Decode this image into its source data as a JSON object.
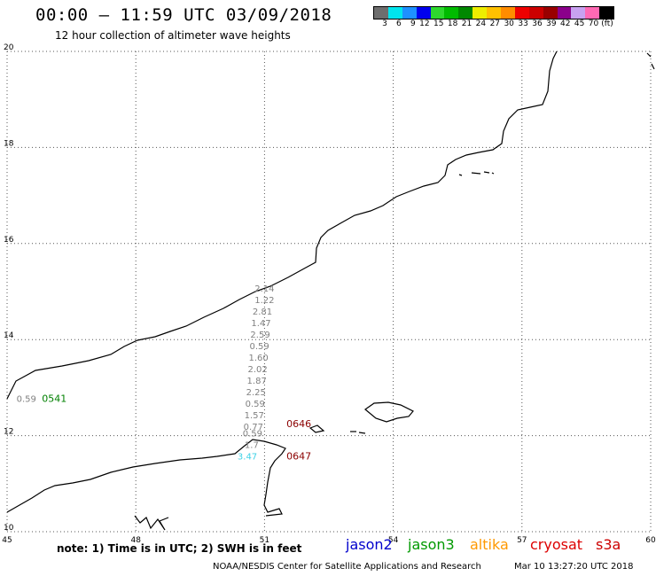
{
  "header": {
    "title": "00:00 – 11:59 UTC 03/09/2018",
    "subtitle": "12 hour collection of altimeter wave heights"
  },
  "colorbar": {
    "colors": [
      "#6e6e6e",
      "#00e5ee",
      "#1e90ff",
      "#0000ee",
      "#2ed82e",
      "#00bb00",
      "#008800",
      "#eeee00",
      "#ffc100",
      "#ff8c00",
      "#ee0000",
      "#cc0000",
      "#990000",
      "#8b008b",
      "#c8a2f0",
      "#ff69b4",
      "#000000"
    ],
    "ticks": [
      "3",
      "6",
      "9",
      "12",
      "15",
      "18",
      "21",
      "24",
      "27",
      "30",
      "33",
      "36",
      "39",
      "42",
      "45",
      "70"
    ],
    "unit": "(ft)"
  },
  "map": {
    "lon_range": [
      45,
      60
    ],
    "lat_range": [
      10,
      20
    ],
    "lon_labels": [
      "45",
      "48",
      "51",
      "54",
      "57",
      "60"
    ],
    "lat_labels": [
      "10",
      "12",
      "14",
      "16",
      "18",
      "20"
    ],
    "swh_track": [
      {
        "lon": 51.0,
        "lat": 15.0,
        "value": "2.14",
        "color": "#808080"
      },
      {
        "lon": 51.0,
        "lat": 14.76,
        "value": "1.22",
        "color": "#808080"
      },
      {
        "lon": 50.95,
        "lat": 14.52,
        "value": "2.81",
        "color": "#808080"
      },
      {
        "lon": 50.92,
        "lat": 14.28,
        "value": "1.47",
        "color": "#808080"
      },
      {
        "lon": 50.9,
        "lat": 14.04,
        "value": "2.59",
        "color": "#808080"
      },
      {
        "lon": 50.88,
        "lat": 13.8,
        "value": "0.59",
        "color": "#808080"
      },
      {
        "lon": 50.86,
        "lat": 13.56,
        "value": "1.60",
        "color": "#808080"
      },
      {
        "lon": 50.84,
        "lat": 13.32,
        "value": "2.02",
        "color": "#808080"
      },
      {
        "lon": 50.82,
        "lat": 13.08,
        "value": "1.87",
        "color": "#808080"
      },
      {
        "lon": 50.8,
        "lat": 12.84,
        "value": "2.25",
        "color": "#808080"
      },
      {
        "lon": 50.78,
        "lat": 12.6,
        "value": "0.59",
        "color": "#808080"
      },
      {
        "lon": 50.76,
        "lat": 12.36,
        "value": "1.57",
        "color": "#808080"
      },
      {
        "lon": 50.74,
        "lat": 12.12,
        "value": "0.77",
        "color": "#808080"
      },
      {
        "lon": 50.72,
        "lat": 11.98,
        "value": "0.59",
        "color": "#808080"
      },
      {
        "lon": 50.7,
        "lat": 11.74,
        "value": "1.7",
        "color": "#808080"
      },
      {
        "lon": 50.6,
        "lat": 11.5,
        "value": "3.47",
        "color": "#3fd2e6"
      },
      {
        "lon": 45.45,
        "lat": 12.7,
        "value": "0.59",
        "color": "#808080"
      }
    ],
    "time_labels": [
      {
        "lon": 46.1,
        "lat": 12.7,
        "text": "0541",
        "color": "#008000"
      },
      {
        "lon": 51.8,
        "lat": 12.18,
        "text": "0646",
        "color": "#8b0000"
      },
      {
        "lon": 51.8,
        "lat": 11.5,
        "text": "0647",
        "color": "#8b0000"
      }
    ]
  },
  "footer": {
    "note": "note:  1) Time is in UTC;  2) SWH is in feet",
    "satellites": [
      {
        "name": "jason2",
        "color": "#0000cc"
      },
      {
        "name": "jason3",
        "color": "#009900"
      },
      {
        "name": "altika",
        "color": "#ff9900"
      },
      {
        "name": "cryosat",
        "color": "#dd0000"
      },
      {
        "name": "s3a",
        "color": "#cc0000"
      }
    ],
    "credit": "NOAA/NESDIS Center for Satellite Applications and Research",
    "generated": "Mar 10 13:27:20 UTC 2018"
  }
}
